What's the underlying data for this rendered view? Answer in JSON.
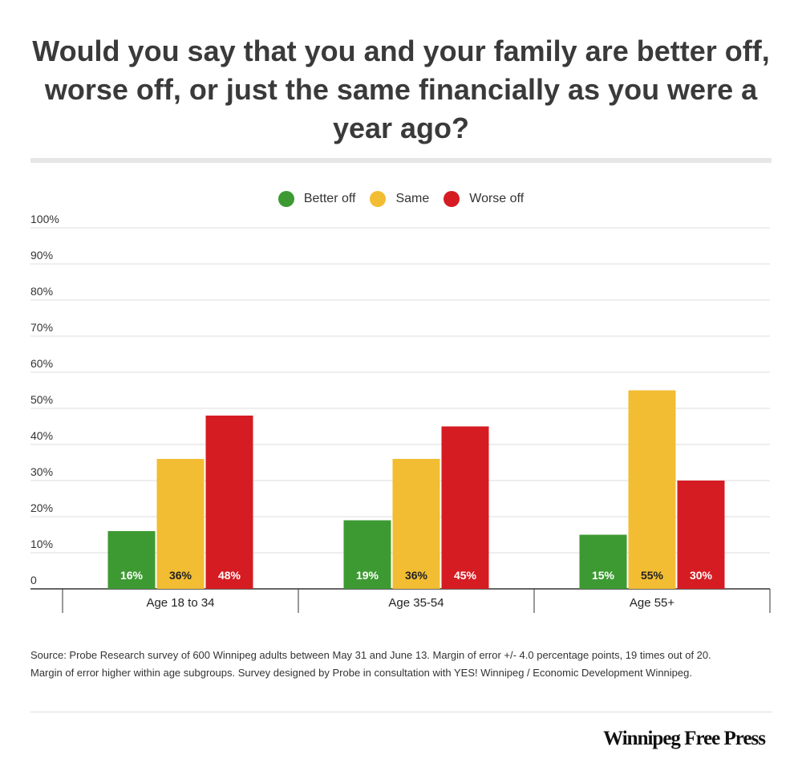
{
  "colors": {
    "better_off": "#3d9a32",
    "same": "#f2bd33",
    "worse_off": "#d51c22"
  },
  "chart_data": {
    "type": "bar",
    "title": "Would you say that you and your family are better off, worse off, or just the same financially as you were a year ago?",
    "categories": [
      "Age 18 to 34",
      "Age 35-54",
      "Age 55+"
    ],
    "series": [
      {
        "name": "Better off",
        "values": [
          16,
          19,
          15
        ],
        "labels": [
          "16%",
          "19%",
          "15%"
        ]
      },
      {
        "name": "Same",
        "values": [
          36,
          36,
          55
        ],
        "labels": [
          "36%",
          "36%",
          "55%"
        ]
      },
      {
        "name": "Worse off",
        "values": [
          48,
          45,
          30
        ],
        "labels": [
          "48%",
          "45%",
          "30%"
        ]
      }
    ],
    "ylim": [
      0,
      100
    ],
    "yticks": [
      "0",
      "10%",
      "20%",
      "30%",
      "40%",
      "50%",
      "60%",
      "70%",
      "80%",
      "90%",
      "100%"
    ],
    "grid": true,
    "legend_position": "top-center"
  },
  "footnote": {
    "line1": "Source: Probe Research survey of 600 Winnipeg adults between May 31 and June 13. Margin of error +/- 4.0 percentage points, 19 times out of 20.",
    "line2": "Margin of error higher within age subgroups. Survey designed by Probe in consultation with YES! Winnipeg / Economic Development Winnipeg."
  },
  "brand": "Winnipeg Free Press"
}
